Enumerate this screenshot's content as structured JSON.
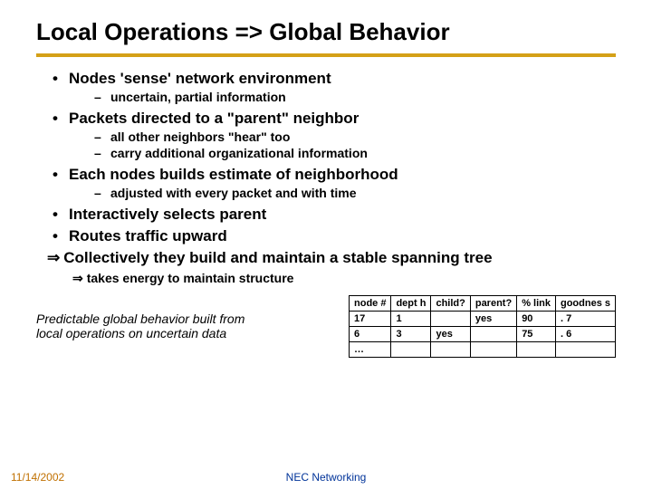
{
  "title": "Local Operations => Global Behavior",
  "bullets": [
    {
      "text": "Nodes 'sense' network environment",
      "sub": [
        "uncertain, partial information"
      ]
    },
    {
      "text": "Packets directed to a \"parent\" neighbor",
      "sub": [
        "all other neighbors \"hear\" too",
        "carry additional organizational information"
      ]
    },
    {
      "text": "Each nodes builds estimate of neighborhood",
      "sub": [
        "adjusted with every packet and with time"
      ]
    },
    {
      "text": "Interactively selects parent",
      "sub": []
    },
    {
      "text": "Routes traffic upward",
      "sub": []
    }
  ],
  "arrow_main": "Collectively they build and maintain a stable spanning tree",
  "arrow_sub": "takes energy to maintain structure",
  "predict_text": "Predictable global behavior built from local operations on uncertain data",
  "table": {
    "columns": [
      "node #",
      "dept h",
      "child?",
      "parent?",
      "% link",
      "goodnes s"
    ],
    "rows": [
      [
        "17",
        "1",
        "",
        "yes",
        "90",
        ". 7"
      ],
      [
        "6",
        "3",
        "yes",
        "",
        "75",
        ". 6"
      ],
      [
        "…",
        "",
        "",
        "",
        "",
        ""
      ]
    ],
    "col_widths": [
      "44px",
      "36px",
      "40px",
      "46px",
      "32px",
      "50px"
    ]
  },
  "footer": {
    "date": "11/14/2002",
    "center": "NEC Networking"
  },
  "colors": {
    "rule": "#d4a017",
    "date": "#c07000",
    "center": "#003399"
  }
}
